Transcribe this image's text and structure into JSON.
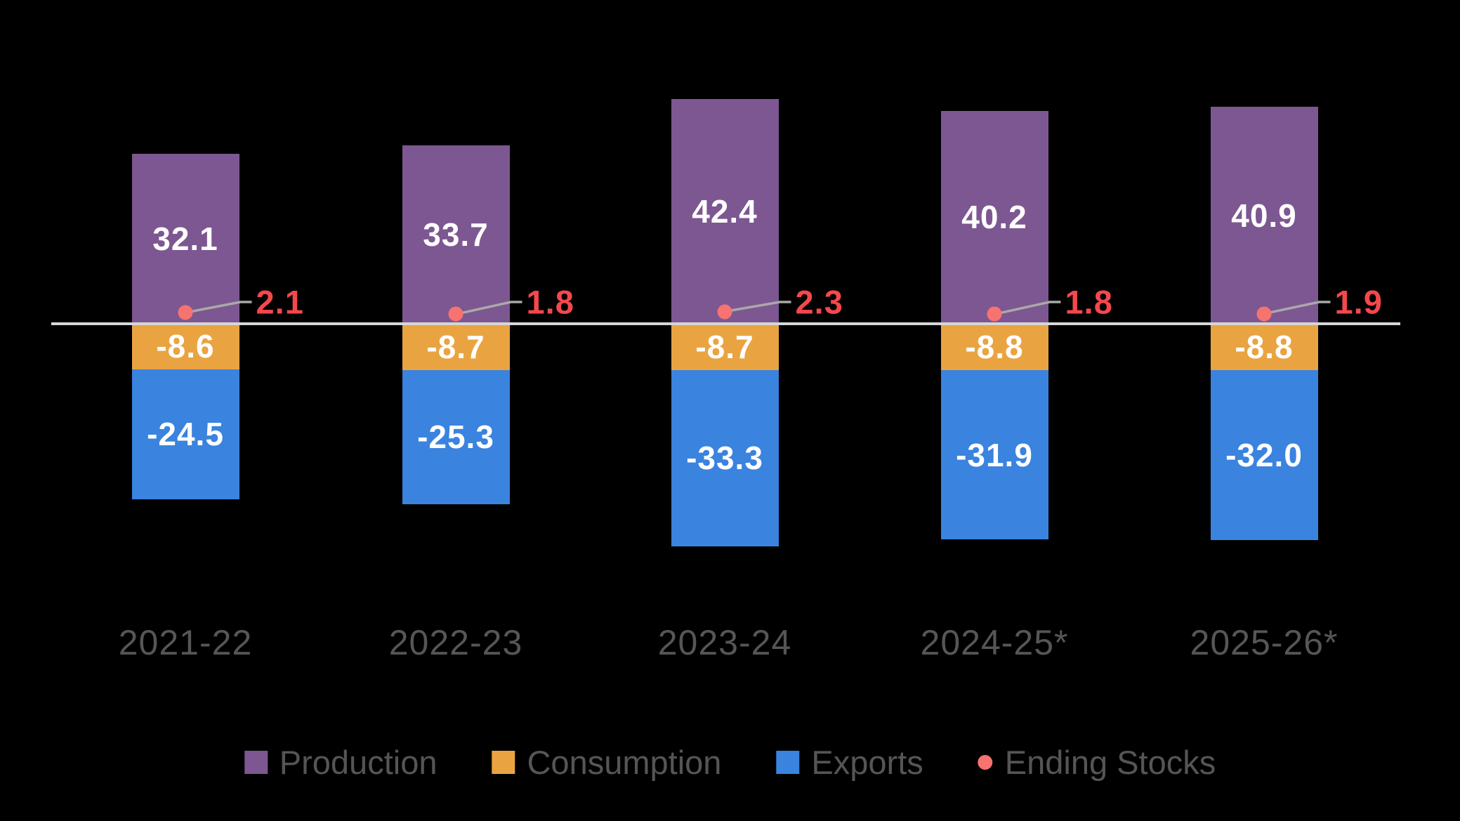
{
  "chart": {
    "background": "#000000",
    "zero_line_color": "#D6D6D6",
    "leader_line_color": "#A9A9A9",
    "axis_label_color": "#565656",
    "legend_label_color": "#555555",
    "bar_value_color": "#FFFFFF"
  },
  "chart_data": {
    "type": "bar",
    "stacked": true,
    "grid": false,
    "legend_position": "bottom",
    "categories": [
      "2021-22",
      "2022-23",
      "2023-24",
      "2024-25*",
      "2025-26*"
    ],
    "series": [
      {
        "name": "Production",
        "color": "#7D5791",
        "values": [
          32.1,
          33.7,
          42.4,
          40.2,
          40.9
        ]
      },
      {
        "name": "Consumption",
        "color": "#E9A441",
        "values": [
          -8.6,
          -8.7,
          -8.7,
          -8.8,
          -8.8
        ]
      },
      {
        "name": "Exports",
        "color": "#3A83DF",
        "values": [
          -24.5,
          -25.3,
          -33.3,
          -31.9,
          -32.0
        ]
      }
    ],
    "point_series": {
      "name": "Ending Stocks",
      "dot_color": "#F7736F",
      "label_color": "#F4484D",
      "values": [
        2.1,
        1.8,
        2.3,
        1.8,
        1.9
      ]
    },
    "legend": [
      "Production",
      "Consumption",
      "Exports",
      "Ending Stocks"
    ],
    "value_format": "one_decimal"
  }
}
